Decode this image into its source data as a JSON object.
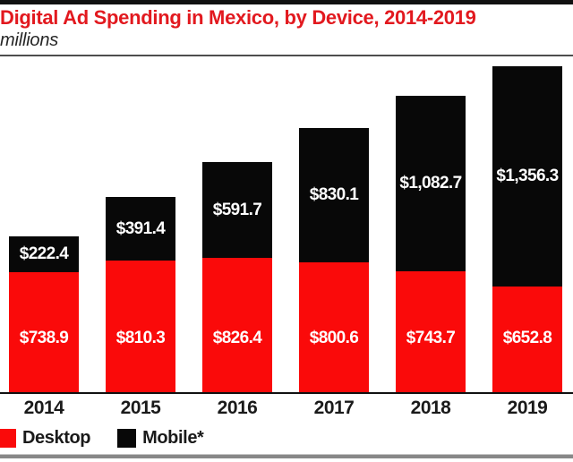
{
  "header": {
    "title": "Digital Ad Spending in Mexico, by Device, 2014-2019",
    "subtitle": "millions"
  },
  "legend": [
    {
      "label": "Desktop",
      "color": "#fa0a0a"
    },
    {
      "label": "Mobile*",
      "color": "#080808"
    }
  ],
  "colors": {
    "title_red": "#e2191f",
    "desktop_bar": "#fa0a0a",
    "mobile_bar": "#080808",
    "value_label_text": "#ffffff",
    "axis_line": "#111111",
    "year_text": "#1a1a1a"
  },
  "chart_data": {
    "type": "bar",
    "stacked": true,
    "title": "Digital Ad Spending in Mexico, by Device, 2014-2019",
    "units": "millions (US$)",
    "xlabel": "",
    "ylabel": "",
    "grid": false,
    "legend_position": "bottom",
    "categories": [
      "2014",
      "2015",
      "2016",
      "2017",
      "2018",
      "2019"
    ],
    "series": [
      {
        "name": "Desktop",
        "color": "#fa0a0a",
        "values": [
          738.9,
          810.3,
          826.4,
          800.6,
          743.7,
          652.8
        ],
        "labels": [
          "$738.9",
          "$810.3",
          "$826.4",
          "$800.6",
          "$743.7",
          "$652.8"
        ]
      },
      {
        "name": "Mobile*",
        "color": "#080808",
        "values": [
          222.4,
          391.4,
          591.7,
          830.1,
          1082.7,
          1356.3
        ],
        "labels": [
          "$222.4",
          "$391.4",
          "$591.7",
          "$830.1",
          "$1,082.7",
          "$1,356.3"
        ]
      }
    ],
    "totals": [
      961.3,
      1201.7,
      1418.1,
      1630.7,
      1826.4,
      2009.1
    ]
  }
}
